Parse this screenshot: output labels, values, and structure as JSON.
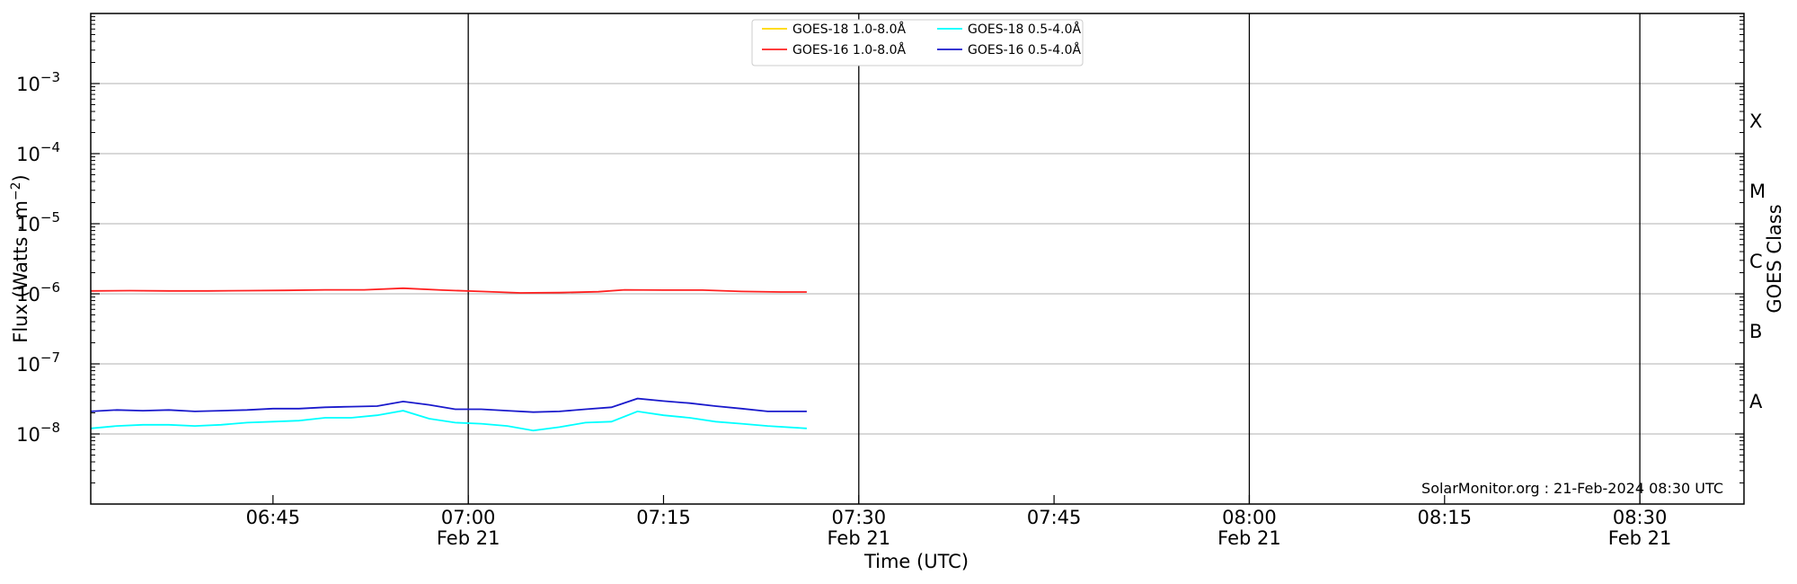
{
  "chart_data": {
    "type": "line",
    "title": "",
    "xlabel": "Time (UTC)",
    "ylabel": "Flux (Watts · m⁻²)",
    "ylabel_right": "GOES Class",
    "yscale": "log",
    "xlim": [
      "06:31",
      "08:38"
    ],
    "ylim": [
      1e-09,
      0.01
    ],
    "grid": "horizontal",
    "legend_position": "top-center",
    "date": "Feb 21",
    "x_ticks": [
      {
        "time": "06:45",
        "label": "06:45",
        "date_label": ""
      },
      {
        "time": "07:00",
        "label": "07:00",
        "date_label": "Feb 21"
      },
      {
        "time": "07:15",
        "label": "07:15",
        "date_label": ""
      },
      {
        "time": "07:30",
        "label": "07:30",
        "date_label": "Feb 21"
      },
      {
        "time": "07:45",
        "label": "07:45",
        "date_label": ""
      },
      {
        "time": "08:00",
        "label": "08:00",
        "date_label": "Feb 21"
      },
      {
        "time": "08:15",
        "label": "08:15",
        "date_label": ""
      },
      {
        "time": "08:30",
        "label": "08:30",
        "date_label": "Feb 21"
      }
    ],
    "vertical_lines": [
      "07:00",
      "07:30",
      "08:00",
      "08:30"
    ],
    "y_ticks": [
      {
        "value": 1e-08,
        "base": "10",
        "exp": "−8"
      },
      {
        "value": 1e-07,
        "base": "10",
        "exp": "−7"
      },
      {
        "value": 1e-06,
        "base": "10",
        "exp": "−6"
      },
      {
        "value": 1e-05,
        "base": "10",
        "exp": "−5"
      },
      {
        "value": 0.0001,
        "base": "10",
        "exp": "−4"
      },
      {
        "value": 0.001,
        "base": "10",
        "exp": "−3"
      }
    ],
    "goes_classes": [
      {
        "label": "A",
        "value": 3e-08
      },
      {
        "label": "B",
        "value": 3e-07
      },
      {
        "label": "C",
        "value": 3e-06
      },
      {
        "label": "M",
        "value": 3e-05
      },
      {
        "label": "X",
        "value": 0.0003
      }
    ],
    "credit": "SolarMonitor.org : 21-Feb-2024 08:30 UTC",
    "legend": [
      {
        "label": "GOES-18 1.0-8.0Å",
        "color": "#ffd700"
      },
      {
        "label": "GOES-18 0.5-4.0Å",
        "color": "#00ffff"
      },
      {
        "label": "GOES-16 1.0-8.0Å",
        "color": "#ff2020"
      },
      {
        "label": "GOES-16 0.5-4.0Å",
        "color": "#1a1acc"
      }
    ],
    "series": [
      {
        "name": "GOES-16 1.0-8.0Å",
        "color": "#ff2020",
        "x": [
          "06:31",
          "06:34",
          "06:37",
          "06:40",
          "06:43",
          "06:46",
          "06:49",
          "06:52",
          "06:55",
          "06:58",
          "07:01",
          "07:04",
          "07:07",
          "07:10",
          "07:12",
          "07:15",
          "07:18",
          "07:21",
          "07:24",
          "07:26"
        ],
        "values": [
          1.1e-06,
          1.11e-06,
          1.1e-06,
          1.1e-06,
          1.11e-06,
          1.12e-06,
          1.14e-06,
          1.14e-06,
          1.2e-06,
          1.13e-06,
          1.08e-06,
          1.03e-06,
          1.04e-06,
          1.07e-06,
          1.14e-06,
          1.13e-06,
          1.13e-06,
          1.08e-06,
          1.06e-06,
          1.06e-06
        ]
      },
      {
        "name": "GOES-16 0.5-4.0Å",
        "color": "#1a1acc",
        "x": [
          "06:31",
          "06:33",
          "06:35",
          "06:37",
          "06:39",
          "06:41",
          "06:43",
          "06:45",
          "06:47",
          "06:49",
          "06:51",
          "06:53",
          "06:55",
          "06:57",
          "06:59",
          "07:01",
          "07:03",
          "07:05",
          "07:07",
          "07:09",
          "07:11",
          "07:13",
          "07:15",
          "07:17",
          "07:19",
          "07:21",
          "07:23",
          "07:26"
        ],
        "values": [
          2.1e-08,
          2.2e-08,
          2.15e-08,
          2.2e-08,
          2.1e-08,
          2.15e-08,
          2.2e-08,
          2.3e-08,
          2.3e-08,
          2.4e-08,
          2.45e-08,
          2.5e-08,
          2.9e-08,
          2.6e-08,
          2.25e-08,
          2.25e-08,
          2.15e-08,
          2.05e-08,
          2.1e-08,
          2.25e-08,
          2.4e-08,
          3.2e-08,
          2.95e-08,
          2.75e-08,
          2.5e-08,
          2.3e-08,
          2.1e-08,
          2.1e-08
        ]
      },
      {
        "name": "GOES-18 0.5-4.0Å",
        "color": "#00ffff",
        "x": [
          "06:31",
          "06:33",
          "06:35",
          "06:37",
          "06:39",
          "06:41",
          "06:43",
          "06:45",
          "06:47",
          "06:49",
          "06:51",
          "06:53",
          "06:55",
          "06:57",
          "06:59",
          "07:01",
          "07:03",
          "07:05",
          "07:07",
          "07:09",
          "07:11",
          "07:13",
          "07:15",
          "07:17",
          "07:19",
          "07:21",
          "07:23",
          "07:26"
        ],
        "values": [
          1.2e-08,
          1.3e-08,
          1.35e-08,
          1.35e-08,
          1.3e-08,
          1.35e-08,
          1.45e-08,
          1.5e-08,
          1.55e-08,
          1.7e-08,
          1.7e-08,
          1.85e-08,
          2.15e-08,
          1.65e-08,
          1.45e-08,
          1.4e-08,
          1.3e-08,
          1.12e-08,
          1.25e-08,
          1.45e-08,
          1.5e-08,
          2.1e-08,
          1.85e-08,
          1.7e-08,
          1.5e-08,
          1.4e-08,
          1.3e-08,
          1.2e-08
        ]
      }
    ]
  }
}
